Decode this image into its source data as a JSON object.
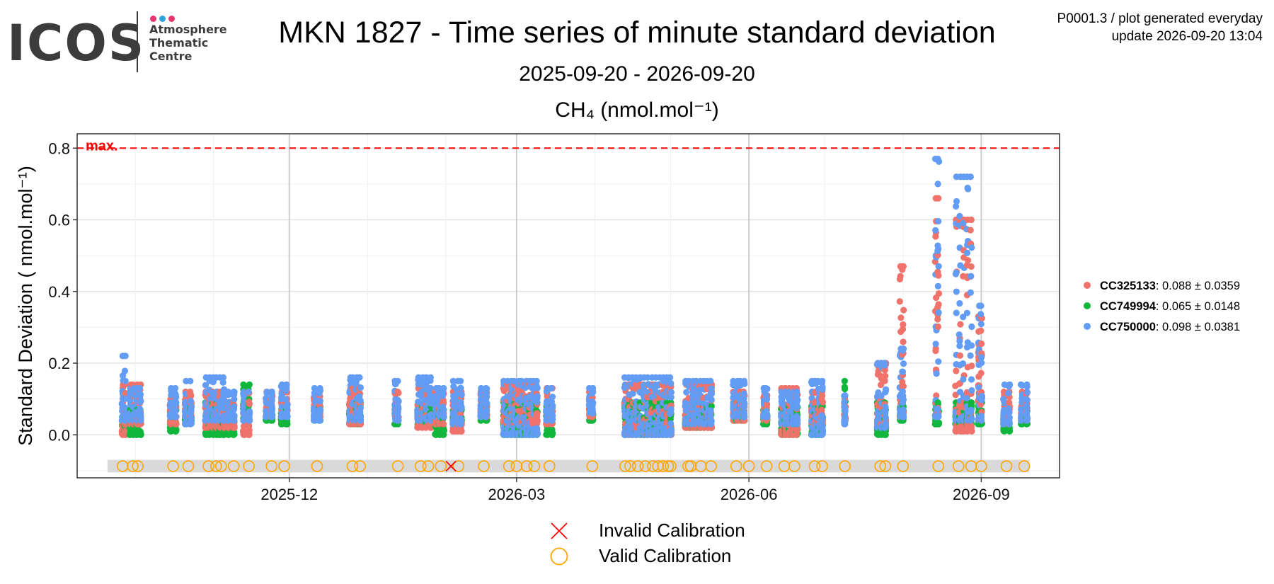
{
  "header": {
    "logo_text": "ICOS",
    "logo_subtitle": "Atmosphere\nThematic\nCentre",
    "logo_dot_colors": [
      "#e8356e",
      "#2ea3e0",
      "#e8356e"
    ],
    "title": "MKN 1827 - Time series of minute standard deviation",
    "subtitle": "2025-09-20 - 2026-09-20",
    "plot_title": "CH₄ (nmol.mol⁻¹)",
    "meta_line1": "P0001.3 / plot generated everyday",
    "meta_line2": "update  2026-09-20 13:04"
  },
  "colors": {
    "CC325133": "#f0736b",
    "CC749994": "#10b73c",
    "CC750000": "#629cf4",
    "max_line": "#ff0000",
    "valid": "#ffa500",
    "invalid": "#ff0000",
    "band": "#d9d9d9"
  },
  "chart_data": {
    "type": "scatter",
    "ylabel": "Standard Deviation ( nmol.mol⁻¹)",
    "x_range": [
      "2025-09-20",
      "2026-09-20"
    ],
    "ylim": [
      -0.12,
      0.84
    ],
    "y_ticks": [
      0.0,
      0.2,
      0.4,
      0.6,
      0.8
    ],
    "y_tick_labels": [
      "0.0",
      "0.2",
      "0.4",
      "0.6",
      "0.8"
    ],
    "x_ticks": [
      "2025-12-01",
      "2026-03-01",
      "2026-06-01",
      "2026-09-01"
    ],
    "x_tick_labels": [
      "2025-12",
      "2026-03",
      "2026-06",
      "2026-09"
    ],
    "grid": true,
    "max_line": {
      "y": 0.8,
      "label": "max."
    },
    "legend_position": "right",
    "series": [
      {
        "name": "CC325133",
        "label": "CC325133",
        "stats": ": 0.088 ± 0.0359"
      },
      {
        "name": "CC749994",
        "label": "CC749994",
        "stats": ": 0.065 ± 0.0148"
      },
      {
        "name": "CC750000",
        "label": "CC750000",
        "stats": ": 0.098 ± 0.0381"
      }
    ],
    "calibration_legend": [
      "Invalid Calibration",
      "Valid Calibration"
    ],
    "valid_calibration_dates": [
      "2025-09-26",
      "2025-09-30",
      "2025-10-02",
      "2025-10-16",
      "2025-10-22",
      "2025-10-30",
      "2025-11-02",
      "2025-11-04",
      "2025-11-09",
      "2025-11-15",
      "2025-11-24",
      "2025-11-29",
      "2025-12-12",
      "2025-12-26",
      "2025-12-29",
      "2026-01-13",
      "2026-01-22",
      "2026-01-25",
      "2026-01-30",
      "2026-02-06",
      "2026-02-16",
      "2026-02-26",
      "2026-03-01",
      "2026-03-05",
      "2026-03-08",
      "2026-03-14",
      "2026-03-31",
      "2026-04-13",
      "2026-04-15",
      "2026-04-18",
      "2026-04-21",
      "2026-04-24",
      "2026-04-26",
      "2026-04-28",
      "2026-04-30",
      "2026-05-01",
      "2026-05-08",
      "2026-05-09",
      "2026-05-13",
      "2026-05-17",
      "2026-05-27",
      "2026-06-01",
      "2026-06-08",
      "2026-06-15",
      "2026-06-19",
      "2026-06-27",
      "2026-06-30",
      "2026-07-09",
      "2026-07-23",
      "2026-07-25",
      "2026-08-01",
      "2026-08-15",
      "2026-08-23",
      "2026-08-28",
      "2026-09-01",
      "2026-09-11",
      "2026-09-18"
    ],
    "invalid_calibration_dates": [
      "2026-02-03"
    ],
    "periods": [
      {
        "start": "2025-09-26",
        "end": "2025-09-27",
        "CC749994": [
          0.01,
          0.05
        ],
        "CC325133": [
          0.0,
          0.14
        ],
        "CC750000": [
          0.04,
          0.22
        ]
      },
      {
        "start": "2025-09-29",
        "end": "2025-10-03",
        "CC749994": [
          0.0,
          0.07
        ],
        "CC325133": [
          0.03,
          0.14
        ],
        "CC750000": [
          0.04,
          0.13
        ]
      },
      {
        "start": "2025-10-15",
        "end": "2025-10-17",
        "CC749994": [
          0.01,
          0.08
        ],
        "CC325133": [
          0.03,
          0.11
        ],
        "CC750000": [
          0.05,
          0.13
        ]
      },
      {
        "start": "2025-10-21",
        "end": "2025-10-23",
        "CC749994": [
          0.04,
          0.08
        ],
        "CC325133": [
          0.05,
          0.12
        ],
        "CC750000": [
          0.03,
          0.15
        ]
      },
      {
        "start": "2025-10-29",
        "end": "2025-11-05",
        "CC749994": [
          0.0,
          0.09
        ],
        "CC325133": [
          0.02,
          0.12
        ],
        "CC750000": [
          0.04,
          0.16
        ]
      },
      {
        "start": "2025-11-07",
        "end": "2025-11-09",
        "CC749994": [
          0.0,
          0.07
        ],
        "CC325133": [
          0.02,
          0.09
        ],
        "CC750000": [
          0.04,
          0.12
        ]
      },
      {
        "start": "2025-11-13",
        "end": "2025-11-15",
        "CC749994": [
          0.04,
          0.14
        ],
        "CC325133": [
          0.0,
          0.12
        ],
        "CC750000": [
          0.04,
          0.12
        ]
      },
      {
        "start": "2025-11-22",
        "end": "2025-11-24",
        "CC749994": [
          0.04,
          0.07
        ],
        "CC325133": [
          0.05,
          0.12
        ],
        "CC750000": [
          0.05,
          0.12
        ]
      },
      {
        "start": "2025-11-28",
        "end": "2025-11-30",
        "CC749994": [
          0.03,
          0.07
        ],
        "CC325133": [
          0.05,
          0.12
        ],
        "CC750000": [
          0.05,
          0.14
        ]
      },
      {
        "start": "2025-12-11",
        "end": "2025-12-13",
        "CC749994": [
          0.04,
          0.08
        ],
        "CC325133": [
          0.05,
          0.11
        ],
        "CC750000": [
          0.04,
          0.13
        ]
      },
      {
        "start": "2025-12-25",
        "end": "2025-12-29",
        "CC749994": [
          0.03,
          0.09
        ],
        "CC325133": [
          0.03,
          0.13
        ],
        "CC750000": [
          0.04,
          0.16
        ]
      },
      {
        "start": "2026-01-12",
        "end": "2026-01-13",
        "CC749994": [
          0.03,
          0.08
        ],
        "CC325133": [
          0.05,
          0.12
        ],
        "CC750000": [
          0.04,
          0.15
        ]
      },
      {
        "start": "2026-01-21",
        "end": "2026-01-26",
        "CC749994": [
          0.03,
          0.08
        ],
        "CC325133": [
          0.02,
          0.13
        ],
        "CC750000": [
          0.04,
          0.16
        ]
      },
      {
        "start": "2026-01-28",
        "end": "2026-01-31",
        "CC749994": [
          0.0,
          0.07
        ],
        "CC325133": [
          0.03,
          0.12
        ],
        "CC750000": [
          0.05,
          0.13
        ]
      },
      {
        "start": "2026-02-04",
        "end": "2026-02-07",
        "CC749994": [
          0.04,
          0.07
        ],
        "CC325133": [
          0.01,
          0.12
        ],
        "CC750000": [
          0.03,
          0.15
        ]
      },
      {
        "start": "2026-02-15",
        "end": "2026-02-17",
        "CC749994": [
          0.04,
          0.08
        ],
        "CC325133": [
          0.05,
          0.12
        ],
        "CC750000": [
          0.05,
          0.13
        ]
      },
      {
        "start": "2026-02-24",
        "end": "2026-03-09",
        "CC749994": [
          0.0,
          0.09
        ],
        "CC325133": [
          0.03,
          0.14
        ],
        "CC750000": [
          0.0,
          0.15
        ]
      },
      {
        "start": "2026-03-13",
        "end": "2026-03-15",
        "CC749994": [
          0.0,
          0.08
        ],
        "CC325133": [
          0.03,
          0.13
        ],
        "CC750000": [
          0.04,
          0.13
        ]
      },
      {
        "start": "2026-03-30",
        "end": "2026-03-31",
        "CC749994": [
          0.04,
          0.07
        ],
        "CC325133": [
          0.05,
          0.12
        ],
        "CC750000": [
          0.06,
          0.13
        ]
      },
      {
        "start": "2026-04-13",
        "end": "2026-05-01",
        "CC749994": [
          0.0,
          0.09
        ],
        "CC325133": [
          0.0,
          0.14
        ],
        "CC750000": [
          0.0,
          0.16
        ]
      },
      {
        "start": "2026-05-07",
        "end": "2026-05-17",
        "CC749994": [
          0.02,
          0.08
        ],
        "CC325133": [
          0.02,
          0.14
        ],
        "CC750000": [
          0.03,
          0.15
        ]
      },
      {
        "start": "2026-05-26",
        "end": "2026-05-30",
        "CC749994": [
          0.04,
          0.09
        ],
        "CC325133": [
          0.04,
          0.12
        ],
        "CC750000": [
          0.05,
          0.15
        ]
      },
      {
        "start": "2026-06-07",
        "end": "2026-06-08",
        "CC749994": [
          0.03,
          0.07
        ],
        "CC325133": [
          0.04,
          0.11
        ],
        "CC750000": [
          0.05,
          0.13
        ]
      },
      {
        "start": "2026-06-14",
        "end": "2026-06-20",
        "CC749994": [
          0.0,
          0.08
        ],
        "CC325133": [
          0.0,
          0.13
        ],
        "CC750000": [
          0.03,
          0.12
        ]
      },
      {
        "start": "2026-06-26",
        "end": "2026-06-30",
        "CC749994": [
          0.0,
          0.08
        ],
        "CC325133": [
          0.03,
          0.12
        ],
        "CC750000": [
          0.0,
          0.15
        ]
      },
      {
        "start": "2026-07-09",
        "end": "2026-07-09",
        "CC749994": [
          0.04,
          0.15
        ],
        "CC325133": [
          0.04,
          0.1
        ],
        "CC750000": [
          0.03,
          0.11
        ]
      },
      {
        "start": "2026-07-22",
        "end": "2026-07-25",
        "CC749994": [
          0.0,
          0.09
        ],
        "CC325133": [
          0.03,
          0.2
        ],
        "CC750000": [
          0.02,
          0.2
        ]
      },
      {
        "start": "2026-07-31",
        "end": "2026-08-01",
        "CC749994": [
          0.04,
          0.09
        ],
        "CC325133": [
          0.05,
          0.47
        ],
        "CC750000": [
          0.05,
          0.24
        ]
      },
      {
        "start": "2026-08-14",
        "end": "2026-08-15",
        "CC749994": [
          0.03,
          0.09
        ],
        "CC325133": [
          0.06,
          0.66
        ],
        "CC750000": [
          0.05,
          0.77
        ]
      },
      {
        "start": "2026-08-22",
        "end": "2026-08-28",
        "CC749994": [
          0.03,
          0.09
        ],
        "CC325133": [
          0.01,
          0.6
        ],
        "CC750000": [
          0.04,
          0.72
        ]
      },
      {
        "start": "2026-08-31",
        "end": "2026-09-01",
        "CC749994": [
          0.03,
          0.09
        ],
        "CC325133": [
          0.04,
          0.33
        ],
        "CC750000": [
          0.04,
          0.36
        ]
      },
      {
        "start": "2026-09-10",
        "end": "2026-09-12",
        "CC749994": [
          0.01,
          0.07
        ],
        "CC325133": [
          0.03,
          0.12
        ],
        "CC750000": [
          0.03,
          0.14
        ]
      },
      {
        "start": "2026-09-17",
        "end": "2026-09-19",
        "CC749994": [
          0.03,
          0.07
        ],
        "CC325133": [
          0.04,
          0.12
        ],
        "CC750000": [
          0.04,
          0.14
        ]
      }
    ]
  }
}
